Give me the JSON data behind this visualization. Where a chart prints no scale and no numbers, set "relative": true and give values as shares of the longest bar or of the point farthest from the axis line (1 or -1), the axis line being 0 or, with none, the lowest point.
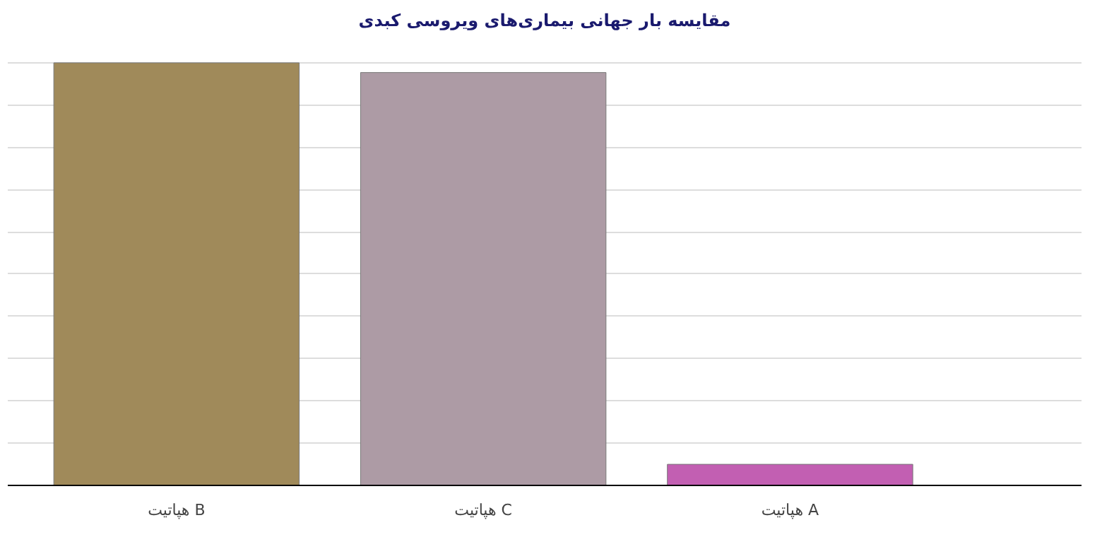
{
  "chart_data": {
    "type": "bar",
    "title": "مقایسه بار جهانی بیماری‌های ویروسی کبدی",
    "categories": [
      "هپاتیت B",
      "هپاتیت C",
      "هپاتیت A"
    ],
    "values": [
      1,
      0.977,
      0.05
    ],
    "colors": [
      "#a08a5a",
      "#ad9ba5",
      "#c25fb2"
    ],
    "relative": true,
    "grid": "y"
  }
}
